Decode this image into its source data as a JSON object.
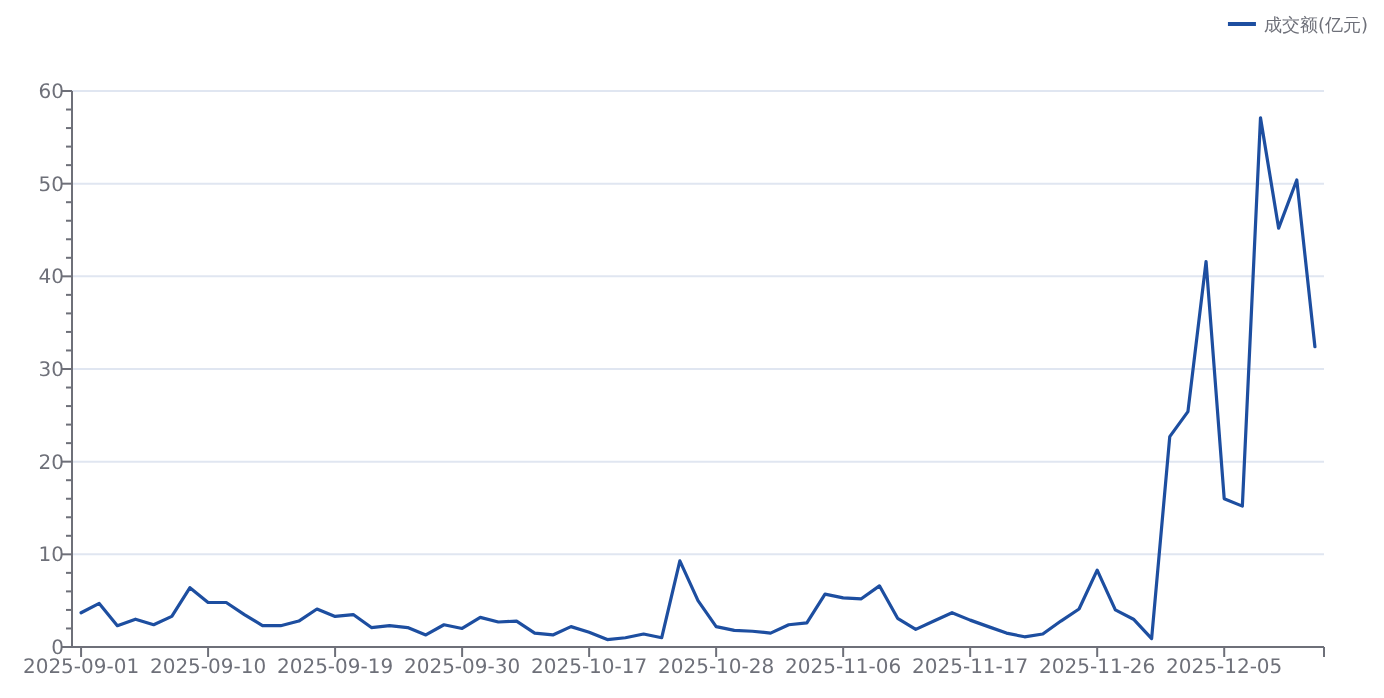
{
  "chart_data": {
    "type": "line",
    "categories": [
      "2025-09-01",
      null,
      null,
      null,
      null,
      null,
      null,
      "2025-09-10",
      null,
      null,
      null,
      null,
      null,
      null,
      "2025-09-19",
      null,
      null,
      null,
      null,
      null,
      null,
      "2025-09-30",
      null,
      null,
      null,
      null,
      null,
      null,
      "2025-10-17",
      null,
      null,
      null,
      null,
      null,
      null,
      "2025-10-28",
      null,
      null,
      null,
      null,
      null,
      null,
      "2025-11-06",
      null,
      null,
      null,
      null,
      null,
      null,
      "2025-11-17",
      null,
      null,
      null,
      null,
      null,
      null,
      "2025-11-26",
      null,
      null,
      null,
      null,
      null,
      null,
      "2025-12-05",
      null,
      null,
      null,
      null,
      null
    ],
    "series": [
      {
        "name": "成交额(亿元)",
        "color": "#1d4ea0",
        "values": [
          3.7,
          4.7,
          2.3,
          3.0,
          2.4,
          3.3,
          6.4,
          4.8,
          4.8,
          3.5,
          2.3,
          2.3,
          2.8,
          4.1,
          3.3,
          3.5,
          2.1,
          2.3,
          2.1,
          1.3,
          2.4,
          2.0,
          3.2,
          2.7,
          2.8,
          1.5,
          1.3,
          2.2,
          1.6,
          0.8,
          1.0,
          1.4,
          1.0,
          9.3,
          5.0,
          2.2,
          1.8,
          1.7,
          1.5,
          2.4,
          2.6,
          5.7,
          5.3,
          5.2,
          6.6,
          3.1,
          1.9,
          2.8,
          3.7,
          2.9,
          2.2,
          1.5,
          1.1,
          1.4,
          2.8,
          4.1,
          8.3,
          4.0,
          3.0,
          0.9,
          22.7,
          25.4,
          41.6,
          16.0,
          15.2,
          57.1,
          45.2,
          50.4,
          32.4
        ]
      }
    ],
    "ylim": [
      0,
      60
    ],
    "yticks": [
      0,
      10,
      20,
      30,
      40,
      50,
      60
    ],
    "grid": "y",
    "legend": "top right"
  }
}
